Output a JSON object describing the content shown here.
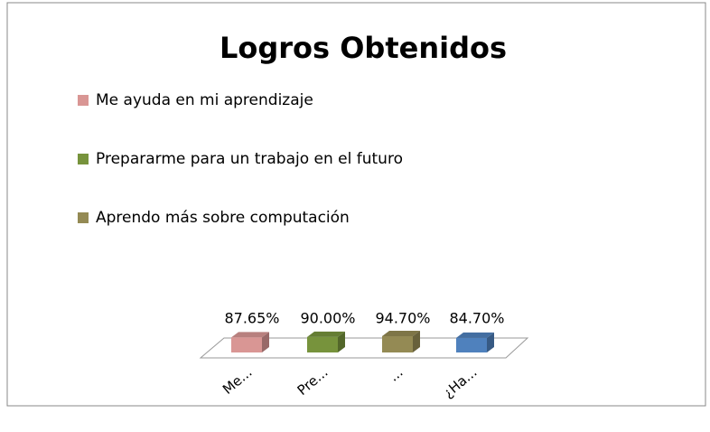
{
  "chart_data": {
    "type": "bar3d",
    "title": "Logros Obtenidos",
    "categories": [
      "Me...",
      "Pre...",
      "...",
      "¿Ha..."
    ],
    "values": [
      87.65,
      90.0,
      94.7,
      84.7
    ],
    "value_labels": [
      "87.65%",
      "90.00%",
      "94.70%",
      "84.70%"
    ],
    "colors": [
      "#d99694",
      "#77933c",
      "#948a54",
      "#4f81bd"
    ],
    "legend": [
      {
        "name": "Me ayuda en mi aprendizaje",
        "color": "#d99694"
      },
      {
        "name": "Prepararme para un trabajo en el futuro",
        "color": "#77933c"
      },
      {
        "name": "Aprendo más sobre computación",
        "color": "#948a54"
      }
    ]
  }
}
